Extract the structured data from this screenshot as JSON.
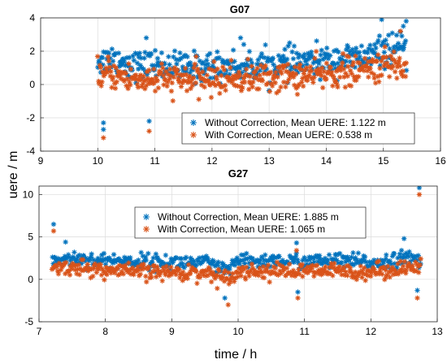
{
  "ylabel": "uere / m",
  "xlabel": "time / h",
  "colors": {
    "without": "#0072BD",
    "with": "#D95319"
  },
  "chart_data": [
    {
      "type": "scatter",
      "title": "G07",
      "xlim": [
        9,
        16
      ],
      "ylim": [
        -4,
        4
      ],
      "xticks": [
        "9",
        "10",
        "11",
        "12",
        "13",
        "14",
        "15",
        "16"
      ],
      "yticks": [
        "-4",
        "-2",
        "0",
        "2",
        "4"
      ],
      "grid": true,
      "legend_position": "bottom-right",
      "x_range_data": [
        10,
        15.4
      ],
      "series": [
        {
          "name": "Without Correction, Mean UERE: 1.122 m",
          "color": "#0072BD",
          "x": [
            10.0,
            10.1,
            10.2,
            10.5,
            10.8,
            11.0,
            11.5,
            12.0,
            12.5,
            13.0,
            13.5,
            14.0,
            14.3,
            14.5,
            14.8,
            15.0,
            15.2,
            15.4
          ],
          "y": [
            1.5,
            1.4,
            1.6,
            1.3,
            1.1,
            1.2,
            1.0,
            1.1,
            1.1,
            1.2,
            1.3,
            1.4,
            1.6,
            1.5,
            1.8,
            2.0,
            2.2,
            2.0
          ]
        },
        {
          "name": "With Correction, Mean UERE: 0.538 m",
          "color": "#D95319",
          "x": [
            10.0,
            10.1,
            10.2,
            10.5,
            10.8,
            11.0,
            11.5,
            12.0,
            12.5,
            13.0,
            13.5,
            14.0,
            14.3,
            14.5,
            14.8,
            15.0,
            15.2,
            15.4
          ],
          "y": [
            0.6,
            0.5,
            0.7,
            0.4,
            0.3,
            0.3,
            0.3,
            0.3,
            0.4,
            0.4,
            0.5,
            0.6,
            0.8,
            0.7,
            1.0,
            1.1,
            1.2,
            1.0
          ]
        }
      ],
      "notable_points": [
        {
          "series": 0,
          "x": 10.1,
          "y": -2.3
        },
        {
          "series": 0,
          "x": 10.1,
          "y": -2.7
        },
        {
          "series": 1,
          "x": 10.1,
          "y": -3.2
        },
        {
          "series": 0,
          "x": 10.9,
          "y": -2.2
        },
        {
          "series": 1,
          "x": 10.9,
          "y": -2.8
        },
        {
          "series": 0,
          "x": 10.85,
          "y": 2.8
        },
        {
          "series": 0,
          "x": 12.5,
          "y": 2.8
        },
        {
          "series": 0,
          "x": 14.97,
          "y": 3.9
        },
        {
          "series": 0,
          "x": 15.4,
          "y": 3.8
        },
        {
          "series": 0,
          "x": 15.35,
          "y": 3.5
        },
        {
          "series": 1,
          "x": 15.3,
          "y": 3.2
        }
      ]
    },
    {
      "type": "scatter",
      "title": "G27",
      "xlim": [
        7,
        13
      ],
      "ylim": [
        -5,
        11
      ],
      "xticks": [
        "7",
        "8",
        "9",
        "10",
        "11",
        "12",
        "13"
      ],
      "yticks": [
        "-5",
        "0",
        "5",
        "10"
      ],
      "grid": true,
      "legend_position": "top-center",
      "x_range_data": [
        7.2,
        12.75
      ],
      "series": [
        {
          "name": "Without Correction, Mean UERE: 1.885 m",
          "color": "#0072BD",
          "x": [
            7.2,
            7.5,
            8.0,
            8.5,
            9.0,
            9.5,
            9.8,
            10.0,
            10.5,
            11.0,
            11.5,
            12.0,
            12.3,
            12.5,
            12.75
          ],
          "y": [
            2.2,
            2.5,
            2.2,
            2.1,
            2.0,
            2.0,
            1.0,
            2.0,
            2.2,
            2.1,
            2.2,
            2.0,
            2.2,
            2.5,
            2.2
          ]
        },
        {
          "name": "With Correction, Mean UERE: 1.065 m",
          "color": "#D95319",
          "x": [
            7.2,
            7.5,
            8.0,
            8.5,
            9.0,
            9.5,
            9.8,
            10.0,
            10.5,
            11.0,
            11.5,
            12.0,
            12.3,
            12.5,
            12.75
          ],
          "y": [
            1.2,
            1.5,
            1.0,
            0.9,
            0.8,
            0.8,
            0.2,
            0.9,
            1.0,
            0.9,
            1.0,
            0.9,
            1.1,
            1.5,
            1.2
          ]
        }
      ],
      "notable_points": [
        {
          "series": 0,
          "x": 7.22,
          "y": 6.5
        },
        {
          "series": 1,
          "x": 7.22,
          "y": 5.7
        },
        {
          "series": 0,
          "x": 7.4,
          "y": 4.4
        },
        {
          "series": 0,
          "x": 9.8,
          "y": -2.2
        },
        {
          "series": 1,
          "x": 9.85,
          "y": -3.0
        },
        {
          "series": 0,
          "x": 10.88,
          "y": 4.3
        },
        {
          "series": 1,
          "x": 10.88,
          "y": 3.4
        },
        {
          "series": 0,
          "x": 10.9,
          "y": -1.5
        },
        {
          "series": 1,
          "x": 10.9,
          "y": -2.2
        },
        {
          "series": 0,
          "x": 12.5,
          "y": 4.8
        },
        {
          "series": 0,
          "x": 12.7,
          "y": -1.3
        },
        {
          "series": 1,
          "x": 12.7,
          "y": -2.2
        },
        {
          "series": 0,
          "x": 12.73,
          "y": 10.8
        },
        {
          "series": 1,
          "x": 12.73,
          "y": 10.0
        }
      ]
    }
  ]
}
